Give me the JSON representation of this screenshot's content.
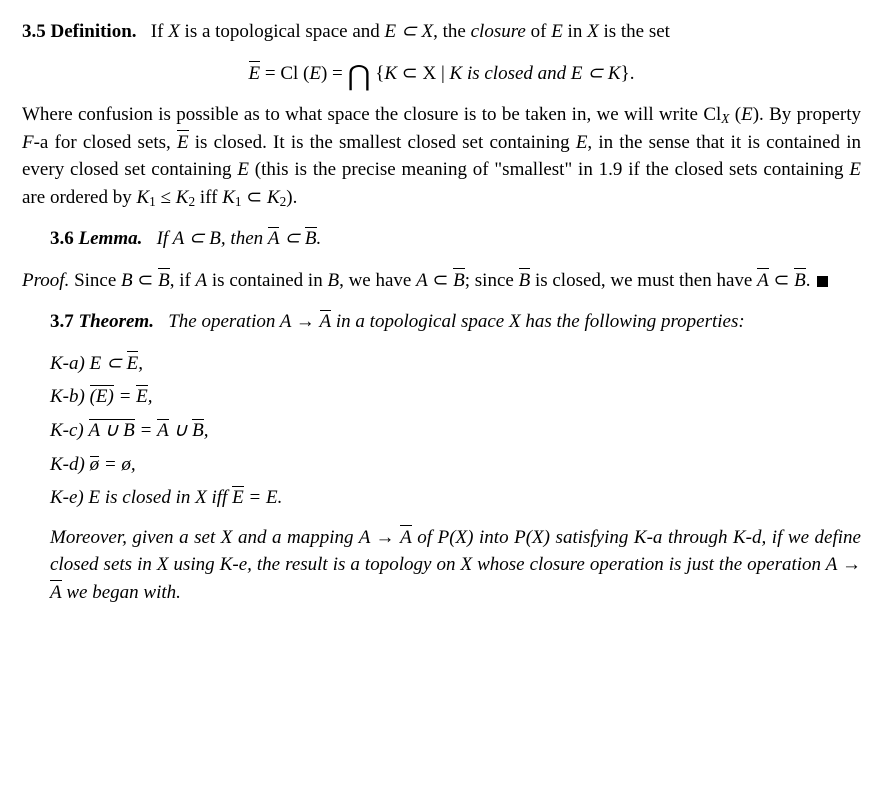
{
  "def": {
    "num": "3.5",
    "word": "Definition.",
    "text1a": "If ",
    "text1b": " is a topological space and ",
    "text1c": ", the ",
    "closure_word": "closure",
    "text1d": " of ",
    "text1e": " in ",
    "text1f": " is the set",
    "X": "X",
    "E": "E",
    "EsubX": "E ⊂ X",
    "eq_lhs_bar": "E",
    "eq_eq1": " = Cl (",
    "eq_E": "E",
    "eq_eq2": ") = ",
    "eq_set_open": " {",
    "eq_K": "K",
    "eq_subX": " ⊂ X",
    "eq_mid": " | ",
    "eq_Kclosed": "K is closed and ",
    "eq_EsubK": "E ⊂ K",
    "eq_set_close": "}.",
    "para2a": "Where confusion is possible as to what space the closure is to be taken in, we will write Cl",
    "para2_subX": "X",
    "para2b": " (",
    "para2b_E": "E",
    "para2c": "). By property ",
    "para2_Fa": "F",
    "para2d": "-a for closed sets, ",
    "para2_Ebar": "E",
    "para2e": " is closed. It is the smallest closed set containing ",
    "para2_E2": "E",
    "para2f": ", in the sense that it is contained in every closed set containing ",
    "para2_E3": "E",
    "para2g": " (this is the precise meaning of \"smallest\" in 1.9 if the closed sets containing ",
    "para2_E4": "E",
    "para2h": " are ordered by ",
    "para2_K1": "K",
    "para2_K1sub": "1",
    "para2_le": " ≤ ",
    "para2_K2": "K",
    "para2_K2sub": "2",
    "para2_iff": " iff ",
    "para2_K1b": "K",
    "para2_K1bsub": "1",
    "para2_sub": " ⊂ ",
    "para2_K2b": "K",
    "para2_K2bsub": "2",
    "para2_end": ")."
  },
  "lemma": {
    "num": "3.6",
    "word": "Lemma.",
    "body1": "If A ⊂ B, then ",
    "Abar": "A",
    "sub": " ⊂ ",
    "Bbar": "B",
    "end": "."
  },
  "proof": {
    "label": "Proof.",
    "t1": " Since ",
    "B": "B",
    "sub1": " ⊂ ",
    "Bbar1": "B",
    "t2": ", if ",
    "A": "A",
    "t3": " is contained in ",
    "B2": "B",
    "t4": ", we have ",
    "A2": "A",
    "sub2": " ⊂ ",
    "Bbar2": "B",
    "t5": "; since ",
    "Bbar3": "B",
    "t6": " is closed, we must then have ",
    "Abar": "A",
    "sub3": " ⊂ ",
    "Bbar4": "B",
    "end": ". "
  },
  "theorem": {
    "num": "3.7",
    "word": "Theorem.",
    "body1": "The operation A → ",
    "Abar": "A",
    "body2": " in a topological space X has the following properties:"
  },
  "klist": {
    "a_label": "K-a) ",
    "a_E": "E",
    "a_sub": " ⊂ ",
    "a_Ebar": "E",
    "a_end": ",",
    "b_label": "K-b) ",
    "b_lp": "(",
    "b_Ebar_inner": "E",
    "b_rp": ")",
    "b_eq": " = ",
    "b_Ebar": "E",
    "b_end": ",",
    "c_label": "K-c) ",
    "c_AuB": "A ∪ B",
    "c_eq": " = ",
    "c_Abar": "A",
    "c_cup": " ∪ ",
    "c_Bbar": "B",
    "c_end": ",",
    "d_label": "K-d) ",
    "d_obar": "ø",
    "d_eq": " = ø,",
    "e_label": "K-e) ",
    "e_t1": "E is closed in X iff ",
    "e_Ebar": "E",
    "e_t2": " = E."
  },
  "moreover": {
    "t1": "Moreover, given a set X and a mapping A → ",
    "Abar": "A",
    "t2": " of ",
    "PX1": "(X)",
    "t3": " into ",
    "PX2": "(X)",
    "t4": " satisfying K-a through K-d, if we define closed sets in X using K-e, the result is a topology on X whose closure operation is just the operation A → ",
    "Abar2": "A",
    "t5": " we began with.",
    "scriptP": "P"
  }
}
